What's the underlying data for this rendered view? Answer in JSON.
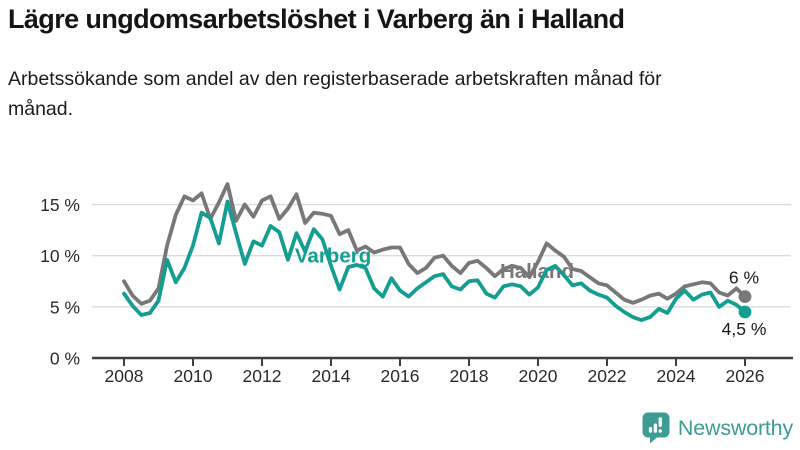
{
  "header": {
    "title": "Lägre ungdomsarbetslöshet i Varberg än i Halland",
    "subtitle": "Arbetssökande som andel av den registerbaserade arbetskraften månad för månad."
  },
  "chart_data": {
    "type": "line",
    "title": "Lägre ungdomsarbetslöshet i Varberg än i Halland",
    "subtitle": "Arbetssökande som andel av den registerbaserade arbetskraften månad för månad.",
    "xlabel": "",
    "ylabel": "",
    "ylim": [
      0,
      18
    ],
    "xlim": [
      2007.1,
      2027.4
    ],
    "grid": "horizontal",
    "legend": "inline-labels-on-lines",
    "yticks": [
      0,
      5,
      10,
      15
    ],
    "ytick_labels": [
      "0 %",
      "5 %",
      "10 %",
      "15 %"
    ],
    "xticks": [
      2008,
      2010,
      2012,
      2014,
      2016,
      2018,
      2020,
      2022,
      2024,
      2026
    ],
    "x": [
      2008,
      2008.25,
      2008.5,
      2008.75,
      2009,
      2009.25,
      2009.5,
      2009.75,
      2010,
      2010.25,
      2010.5,
      2010.75,
      2011,
      2011.25,
      2011.5,
      2011.75,
      2012,
      2012.25,
      2012.5,
      2012.75,
      2013,
      2013.25,
      2013.5,
      2013.75,
      2014,
      2014.25,
      2014.5,
      2014.75,
      2015,
      2015.25,
      2015.5,
      2015.75,
      2016,
      2016.25,
      2016.5,
      2016.75,
      2017,
      2017.25,
      2017.5,
      2017.75,
      2018,
      2018.25,
      2018.5,
      2018.75,
      2019,
      2019.25,
      2019.5,
      2019.75,
      2020,
      2020.25,
      2020.5,
      2020.75,
      2021,
      2021.25,
      2021.5,
      2021.75,
      2022,
      2022.25,
      2022.5,
      2022.75,
      2023,
      2023.25,
      2023.5,
      2023.75,
      2024,
      2024.25,
      2024.5,
      2024.75,
      2025,
      2025.25,
      2025.5,
      2025.75,
      2026
    ],
    "series": [
      {
        "name": "Halland",
        "color": "#787878",
        "end_label": "6 %",
        "end_label_offset": -13,
        "label_x": 2019.97,
        "label_y": 8.5,
        "values": [
          7.5,
          6.1,
          5.3,
          5.6,
          6.8,
          11.0,
          14.0,
          15.8,
          15.4,
          16.1,
          13.6,
          15.2,
          17.0,
          13.4,
          15.0,
          13.8,
          15.4,
          15.8,
          13.6,
          14.6,
          16.0,
          13.2,
          14.2,
          14.1,
          13.9,
          12.1,
          12.5,
          10.5,
          10.9,
          10.3,
          10.6,
          10.8,
          10.8,
          9.2,
          8.3,
          8.8,
          9.8,
          10.0,
          9.0,
          8.3,
          9.3,
          9.5,
          8.8,
          8.0,
          8.7,
          9.0,
          8.8,
          7.9,
          9.4,
          11.2,
          10.5,
          9.9,
          8.7,
          8.5,
          7.9,
          7.3,
          7.1,
          6.4,
          5.7,
          5.4,
          5.7,
          6.1,
          6.3,
          5.8,
          6.3,
          7.0,
          7.2,
          7.4,
          7.3,
          6.4,
          6.1,
          6.8,
          6.0
        ]
      },
      {
        "name": "Varberg",
        "color": "#149d91",
        "end_label": "4,5 %",
        "end_label_offset": 23,
        "label_x": 2014.06,
        "label_y": 10.0,
        "values": [
          6.3,
          5.1,
          4.2,
          4.4,
          5.6,
          9.6,
          7.4,
          8.8,
          11.0,
          14.2,
          13.7,
          11.2,
          15.3,
          12.2,
          9.2,
          11.4,
          11.0,
          12.9,
          12.3,
          9.6,
          12.2,
          10.4,
          12.6,
          11.6,
          9.0,
          6.7,
          8.9,
          9.1,
          8.8,
          6.8,
          6.0,
          7.8,
          6.6,
          6.0,
          6.8,
          7.4,
          8.0,
          8.2,
          7.0,
          6.7,
          7.5,
          7.6,
          6.3,
          5.9,
          7.0,
          7.2,
          7.0,
          6.2,
          6.9,
          8.6,
          9.0,
          8.1,
          7.1,
          7.3,
          6.6,
          6.2,
          5.9,
          5.1,
          4.5,
          4.0,
          3.7,
          4.0,
          4.8,
          4.4,
          5.8,
          6.6,
          5.7,
          6.2,
          6.4,
          5.0,
          5.6,
          5.2,
          4.5
        ]
      }
    ],
    "colors": {
      "grid": "#dcdcdc",
      "axis": "#3f3f3f",
      "tick_text": "#2a2a2a",
      "end_label_text": "#1a1a1a"
    }
  },
  "footer": {
    "brand": "Newsworthy",
    "brand_color": "#3d9c94"
  }
}
